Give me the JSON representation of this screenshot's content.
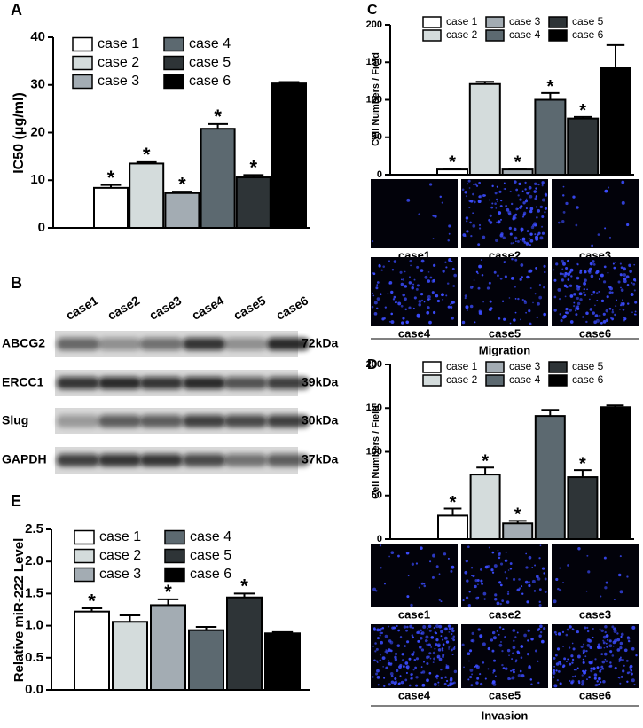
{
  "chart_data": [
    {
      "type": "bar",
      "panel": "A",
      "ylabel": "IC50 (μg/ml)",
      "categories": [
        "case 1",
        "case 2",
        "case 3",
        "case 4",
        "case 5",
        "case 6"
      ],
      "series": [
        {
          "name": "case 1",
          "color": "#ffffff"
        },
        {
          "name": "case 2",
          "color": "#d4dcdc"
        },
        {
          "name": "case 3",
          "color": "#a3acb3"
        },
        {
          "name": "case 4",
          "color": "#5c6970"
        },
        {
          "name": "case 5",
          "color": "#2e3437"
        },
        {
          "name": "case 6",
          "color": "#000000"
        }
      ],
      "values": [
        8.4,
        13.5,
        7.3,
        20.8,
        10.6,
        30.3
      ],
      "errors": [
        0.6,
        0.3,
        0.3,
        1.0,
        0.5,
        0.3
      ],
      "significance": [
        "*",
        "*",
        "*",
        "*",
        "*",
        null
      ],
      "ylim": [
        0,
        40
      ],
      "yticks": [
        0,
        10,
        20,
        30,
        40
      ],
      "legend_rows": 3
    },
    {
      "type": "bar",
      "panel": "C",
      "ylabel": "Cell Numbers / Field",
      "categories": [
        "case 1",
        "case 2",
        "case 3",
        "case 4",
        "case 5",
        "case 6"
      ],
      "series": [
        {
          "name": "case 1",
          "color": "#ffffff"
        },
        {
          "name": "case 2",
          "color": "#d4dcdc"
        },
        {
          "name": "case 3",
          "color": "#a3acb3"
        },
        {
          "name": "case 4",
          "color": "#5c6970"
        },
        {
          "name": "case 5",
          "color": "#2e3437"
        },
        {
          "name": "case 6",
          "color": "#000000"
        }
      ],
      "values": [
        7,
        121,
        7,
        100,
        75,
        143
      ],
      "errors": [
        1,
        3,
        1,
        9,
        2,
        30
      ],
      "significance": [
        "*",
        null,
        "*",
        "*",
        "*",
        null
      ],
      "ylim": [
        0,
        200
      ],
      "yticks": [
        0,
        50,
        100,
        150,
        200
      ],
      "legend_rows": 2
    },
    {
      "type": "bar",
      "panel": "D",
      "ylabel": "Cell Numbers / Field",
      "categories": [
        "case 1",
        "case 2",
        "case 3",
        "case 4",
        "case 5",
        "case 6"
      ],
      "series": [
        {
          "name": "case 1",
          "color": "#ffffff"
        },
        {
          "name": "case 2",
          "color": "#d4dcdc"
        },
        {
          "name": "case 3",
          "color": "#a3acb3"
        },
        {
          "name": "case 4",
          "color": "#5c6970"
        },
        {
          "name": "case 5",
          "color": "#2e3437"
        },
        {
          "name": "case 6",
          "color": "#000000"
        }
      ],
      "values": [
        27,
        74,
        18,
        141,
        71,
        151
      ],
      "errors": [
        8,
        8,
        3,
        7,
        8,
        2
      ],
      "significance": [
        "*",
        "*",
        "*",
        null,
        "*",
        null
      ],
      "ylim": [
        0,
        200
      ],
      "yticks": [
        0,
        50,
        100,
        150,
        200
      ],
      "legend_rows": 2
    },
    {
      "type": "bar",
      "panel": "E",
      "ylabel": "Relative miR-222 Level",
      "categories": [
        "case 1",
        "case 2",
        "case 3",
        "case 4",
        "case 5",
        "case 6"
      ],
      "series": [
        {
          "name": "case 1",
          "color": "#ffffff"
        },
        {
          "name": "case 2",
          "color": "#d4dcdc"
        },
        {
          "name": "case 3",
          "color": "#a3acb3"
        },
        {
          "name": "case 4",
          "color": "#5c6970"
        },
        {
          "name": "case 5",
          "color": "#2e3437"
        },
        {
          "name": "case 6",
          "color": "#000000"
        }
      ],
      "values": [
        1.22,
        1.06,
        1.32,
        0.93,
        1.44,
        0.88
      ],
      "errors": [
        0.05,
        0.1,
        0.09,
        0.05,
        0.06,
        0.02
      ],
      "significance": [
        "*",
        null,
        "*",
        null,
        "*",
        null
      ],
      "ylim": [
        0,
        2.5
      ],
      "yticks": [
        {
          "value": 0,
          "label": "0.0"
        },
        0.5,
        {
          "value": 1,
          "label": "1.0"
        },
        1.5,
        {
          "value": 2,
          "label": "2.0"
        },
        2.5
      ],
      "legend_rows": 3
    }
  ],
  "blot": {
    "panel": "B",
    "lanes": [
      "case1",
      "case2",
      "case3",
      "case4",
      "case5",
      "case6"
    ],
    "rows": [
      {
        "name": "ABCG2",
        "size": "72kDa"
      },
      {
        "name": "ERCC1",
        "size": "39kDa"
      },
      {
        "name": "Slug",
        "size": "30kDa"
      },
      {
        "name": "GAPDH",
        "size": "37kDa"
      }
    ]
  },
  "migration_images": {
    "labels": [
      "case1",
      "case2",
      "case3",
      "case4",
      "case5",
      "case6"
    ],
    "caption": "Migration"
  },
  "invasion_images": {
    "labels": [
      "case1",
      "case2",
      "case3",
      "case4",
      "case5",
      "case6"
    ],
    "caption": "Invasion"
  }
}
